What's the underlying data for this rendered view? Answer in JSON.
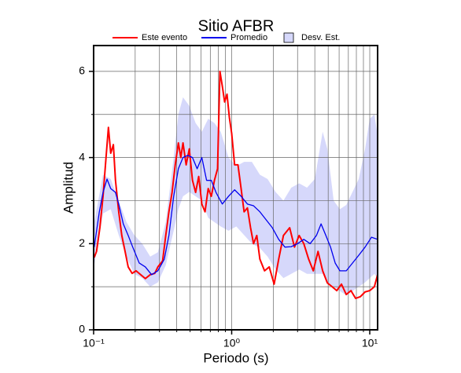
{
  "chart_data": {
    "type": "line",
    "title": "Sitio AFBR",
    "xlabel": "Periodo (s)",
    "ylabel": "Amplitud",
    "xscale": "log",
    "grid": true,
    "xlim": [
      0.1,
      11.4
    ],
    "ylim": [
      0,
      6.6
    ],
    "xticks": [
      {
        "value": 0.1,
        "label": "10⁻¹"
      },
      {
        "value": 1,
        "label": "10⁰"
      },
      {
        "value": 10,
        "label": "10¹"
      }
    ],
    "minor_xticks": [
      0.2,
      0.3,
      0.4,
      0.5,
      0.6,
      0.7,
      0.8,
      0.9,
      2,
      3,
      4,
      5,
      6,
      7,
      8,
      9
    ],
    "yticks": [
      0,
      2,
      4,
      6
    ],
    "minor_yticks": [
      1,
      3,
      5
    ],
    "band": {
      "name": "Desv. Est.",
      "color": "#d6d8fb",
      "x": [
        0.101,
        0.117,
        0.133,
        0.152,
        0.173,
        0.197,
        0.225,
        0.257,
        0.292,
        0.333,
        0.38,
        0.411,
        0.444,
        0.493,
        0.548,
        0.608,
        0.676,
        0.75,
        0.833,
        0.949,
        1.08,
        1.23,
        1.4,
        1.6,
        1.82,
        2.08,
        2.37,
        2.7,
        3.08,
        3.51,
        4.0,
        4.56,
        4.93,
        5.48,
        6.08,
        6.76,
        7.5,
        8.32,
        9.25,
        10.0,
        10.8,
        11.4
      ],
      "upper": [
        2.5,
        3.6,
        3.5,
        3.0,
        2.5,
        2.2,
        2.0,
        1.7,
        1.8,
        2.5,
        4.0,
        5.0,
        5.4,
        5.2,
        4.8,
        4.6,
        4.9,
        4.8,
        4.6,
        4.0,
        3.8,
        3.9,
        3.9,
        3.6,
        3.5,
        3.2,
        3.0,
        3.3,
        3.4,
        3.3,
        3.5,
        4.6,
        4.2,
        3.0,
        2.8,
        2.9,
        3.2,
        3.5,
        4.2,
        4.9,
        5.0,
        4.5
      ],
      "lower": [
        1.5,
        2.7,
        2.8,
        2.2,
        1.7,
        1.3,
        1.2,
        1.0,
        1.1,
        1.5,
        2.3,
        2.8,
        3.1,
        3.2,
        3.1,
        3.0,
        2.6,
        2.5,
        2.4,
        2.3,
        2.4,
        2.2,
        2.0,
        1.9,
        1.7,
        1.4,
        1.2,
        1.3,
        1.4,
        1.3,
        1.3,
        1.3,
        1.1,
        1.0,
        0.9,
        0.8,
        0.9,
        1.0,
        1.1,
        1.2,
        1.3,
        1.2
      ]
    },
    "series": [
      {
        "name": "Este evento",
        "color": "#ff0000",
        "width": 2,
        "x": [
          0.101,
          0.105,
          0.111,
          0.117,
          0.123,
          0.128,
          0.133,
          0.139,
          0.144,
          0.152,
          0.16,
          0.169,
          0.178,
          0.19,
          0.203,
          0.219,
          0.237,
          0.257,
          0.277,
          0.292,
          0.316,
          0.333,
          0.351,
          0.37,
          0.39,
          0.411,
          0.428,
          0.444,
          0.468,
          0.493,
          0.52,
          0.548,
          0.577,
          0.608,
          0.641,
          0.676,
          0.712,
          0.75,
          0.79,
          0.822,
          0.855,
          0.889,
          0.925,
          0.962,
          1.0,
          1.05,
          1.11,
          1.17,
          1.23,
          1.3,
          1.37,
          1.44,
          1.52,
          1.6,
          1.73,
          1.87,
          2.03,
          2.19,
          2.37,
          2.63,
          2.85,
          3.08,
          3.33,
          3.61,
          3.9,
          4.22,
          4.56,
          4.93,
          5.34,
          5.77,
          6.24,
          6.76,
          7.31,
          7.9,
          8.55,
          9.25,
          10.0,
          10.8,
          11.4
        ],
        "values": [
          1.68,
          1.82,
          2.37,
          3.1,
          4.0,
          4.7,
          4.1,
          4.3,
          3.47,
          2.74,
          2.19,
          1.82,
          1.46,
          1.31,
          1.37,
          1.28,
          1.19,
          1.28,
          1.31,
          1.46,
          1.6,
          2.19,
          2.74,
          3.19,
          3.83,
          4.34,
          4.0,
          4.34,
          3.83,
          4.2,
          3.47,
          3.19,
          3.56,
          2.92,
          2.74,
          3.28,
          3.1,
          3.47,
          3.74,
          6.0,
          5.66,
          5.29,
          5.47,
          4.93,
          4.56,
          3.83,
          3.83,
          3.28,
          2.74,
          2.83,
          2.37,
          2.0,
          2.19,
          1.64,
          1.37,
          1.46,
          1.06,
          1.64,
          2.19,
          2.37,
          1.92,
          2.19,
          2.0,
          1.64,
          1.37,
          1.82,
          1.37,
          1.09,
          1.0,
          0.91,
          1.06,
          0.82,
          0.91,
          0.73,
          0.77,
          0.88,
          0.91,
          1.0,
          1.28
        ]
      },
      {
        "name": "Promedio",
        "color": "#0000ee",
        "width": 1.3,
        "x": [
          0.101,
          0.11,
          0.117,
          0.125,
          0.133,
          0.144,
          0.152,
          0.164,
          0.178,
          0.192,
          0.214,
          0.237,
          0.263,
          0.292,
          0.325,
          0.351,
          0.38,
          0.411,
          0.444,
          0.481,
          0.52,
          0.562,
          0.608,
          0.658,
          0.712,
          0.77,
          0.855,
          0.949,
          1.05,
          1.17,
          1.3,
          1.44,
          1.6,
          1.78,
          1.97,
          2.19,
          2.43,
          2.7,
          3.0,
          3.33,
          3.7,
          4.11,
          4.44,
          4.81,
          5.2,
          5.62,
          6.08,
          6.76,
          7.5,
          8.32,
          9.25,
          10.3,
          11.4
        ],
        "values": [
          1.92,
          2.74,
          3.19,
          3.5,
          3.28,
          3.19,
          2.92,
          2.46,
          2.19,
          1.92,
          1.55,
          1.46,
          1.28,
          1.37,
          1.64,
          2.19,
          3.1,
          3.74,
          4.0,
          4.05,
          4.0,
          3.74,
          4.0,
          3.47,
          3.47,
          3.19,
          2.92,
          3.1,
          3.25,
          3.1,
          2.92,
          2.88,
          2.74,
          2.55,
          2.37,
          2.1,
          1.92,
          1.93,
          2.0,
          2.1,
          2.0,
          2.19,
          2.46,
          2.19,
          1.92,
          1.55,
          1.37,
          1.37,
          1.55,
          1.73,
          1.92,
          2.15,
          2.1
        ]
      }
    ]
  }
}
